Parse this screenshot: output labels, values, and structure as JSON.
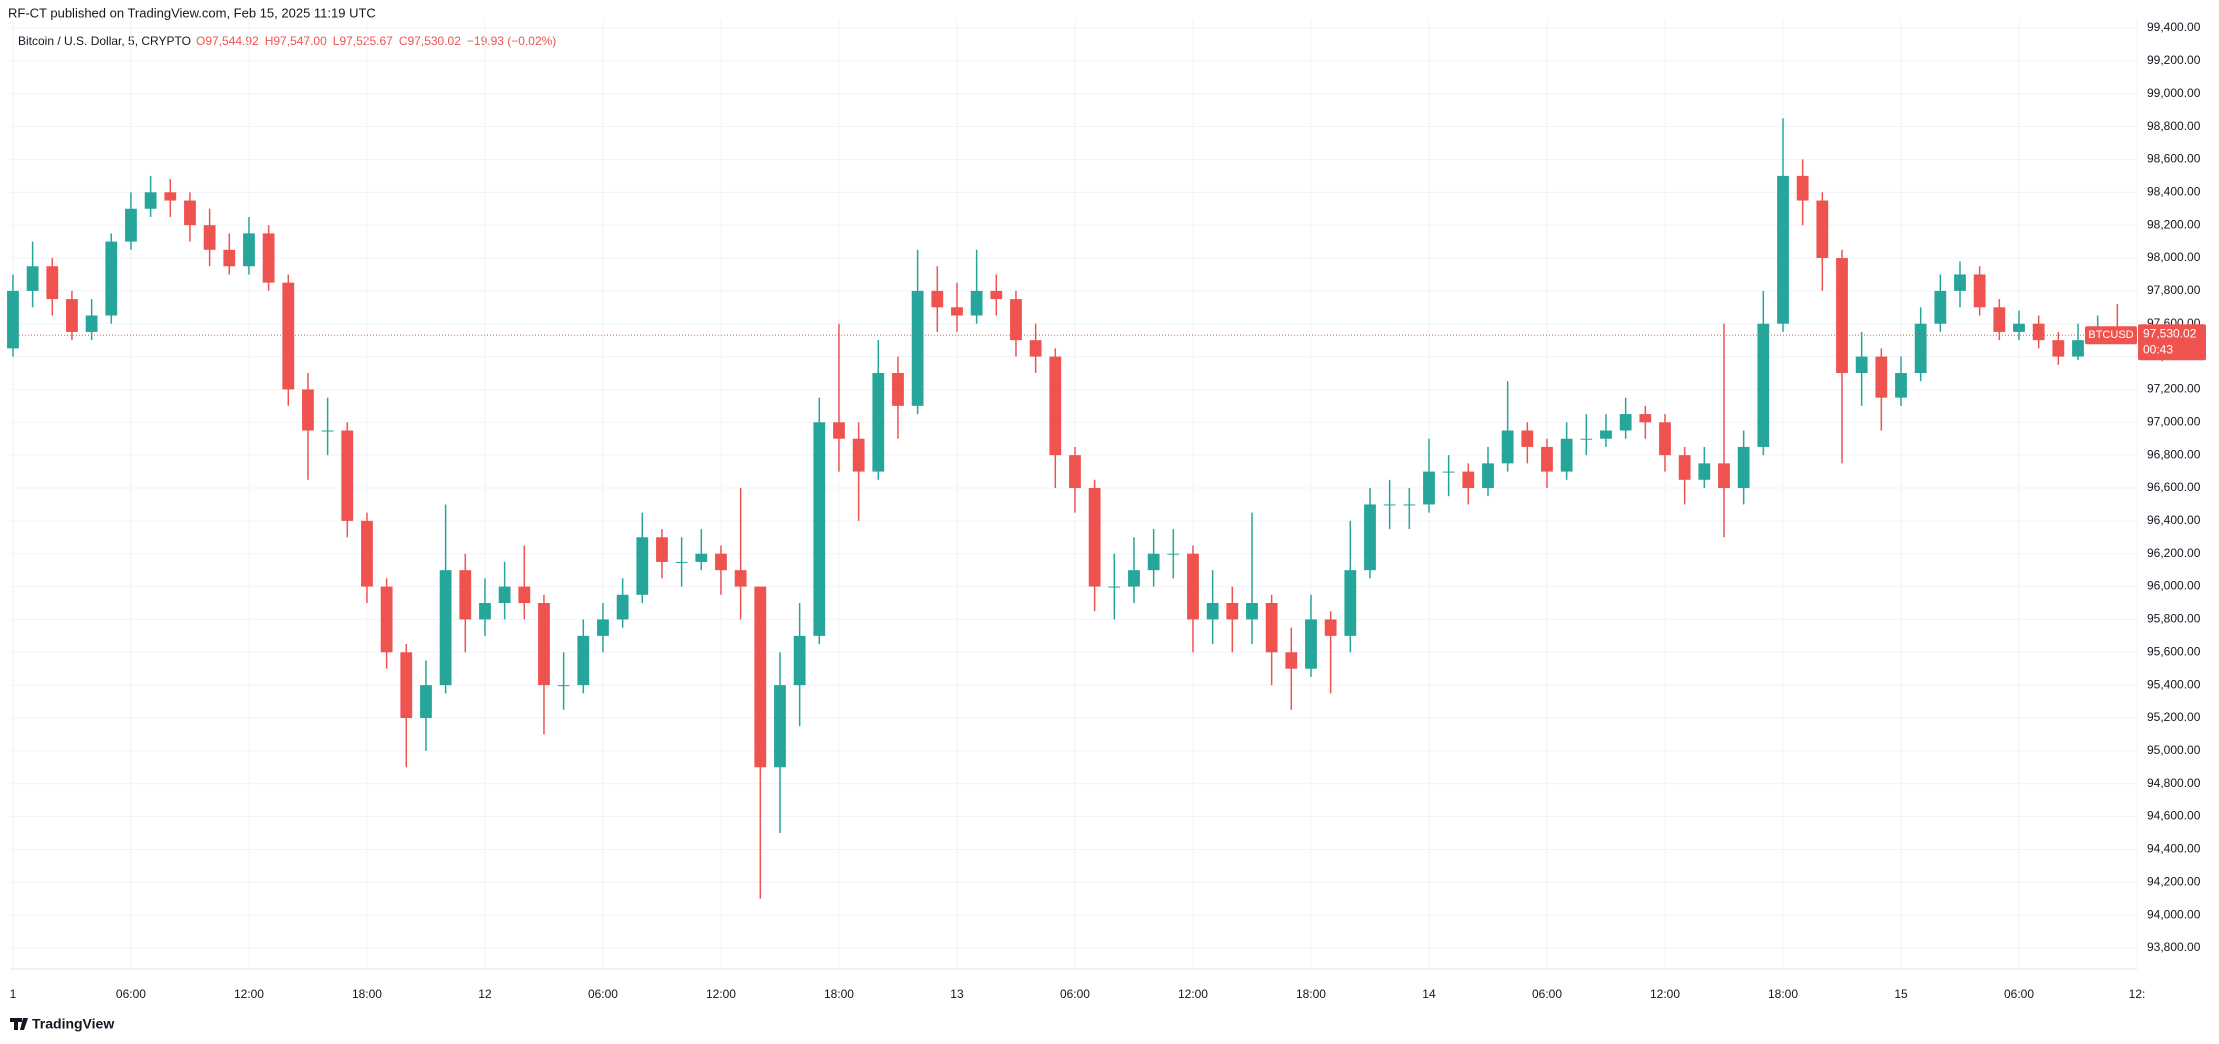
{
  "chart_data": {
    "type": "candlestick",
    "publisher": "RF-CT published on TradingView.com, Feb 15, 2025 11:19 UTC",
    "symbol": "Bitcoin / U.S. Dollar, 5, CRYPTO",
    "ohlc_text": {
      "open": "O97,544.92",
      "high": "H97,547.00",
      "low": "L97,525.67",
      "close": "C97,530.02",
      "change": "−19.93 (−0.02%)"
    },
    "footer": "TradingView",
    "series": [
      {
        "name": "BTCUSD",
        "up_color": "#26a69a",
        "down_color": "#ef5350",
        "open": [
          97450,
          97800,
          97950,
          97750,
          97550,
          97650,
          98100,
          98300,
          98400,
          98350,
          98200,
          98050,
          97950,
          98150,
          97850,
          97200,
          96950,
          96950,
          96400,
          96000,
          95600,
          95200,
          95400,
          96100,
          95800,
          95900,
          96000,
          95900,
          95400,
          95400,
          95700,
          95800,
          95950,
          96300,
          96150,
          96150,
          96200,
          96100,
          96000,
          94900,
          95400,
          95700,
          97000,
          96900,
          96700,
          97300,
          97100,
          97800,
          97700,
          97650,
          97800,
          97750,
          97500,
          97400,
          96800,
          96600,
          96000,
          96000,
          96100,
          96200,
          96200,
          95800,
          95900,
          95800,
          95900,
          95600,
          95500,
          95800,
          95700,
          96100,
          96500,
          96500,
          96500,
          96700,
          96700,
          96600,
          96750,
          96950,
          96850,
          96700,
          96900,
          96900,
          96950,
          97050,
          97000,
          96800,
          96650,
          96750,
          96600,
          96850,
          97600,
          98500,
          98350,
          98000,
          97300,
          97400,
          97150,
          97300,
          97600,
          97800,
          97900,
          97700,
          97550,
          97600,
          97500,
          97400,
          97500,
          97550
        ],
        "high": [
          97900,
          98100,
          98000,
          97800,
          97750,
          98150,
          98400,
          98500,
          98480,
          98400,
          98300,
          98150,
          98250,
          98200,
          97900,
          97300,
          97150,
          97000,
          96450,
          96050,
          95650,
          95550,
          96500,
          96200,
          96050,
          96150,
          96250,
          95950,
          95600,
          95800,
          95900,
          96050,
          96450,
          96350,
          96300,
          96350,
          96250,
          96600,
          96000,
          95600,
          95900,
          97150,
          97600,
          97000,
          97500,
          97400,
          98050,
          97950,
          97850,
          98050,
          97900,
          97800,
          97600,
          97450,
          96850,
          96650,
          96200,
          96300,
          96350,
          96350,
          96250,
          96100,
          96000,
          96450,
          95950,
          95750,
          95950,
          95850,
          96400,
          96600,
          96650,
          96600,
          96900,
          96800,
          96750,
          96850,
          97250,
          97000,
          96900,
          97000,
          97050,
          97050,
          97150,
          97100,
          97050,
          96850,
          96850,
          97600,
          96950,
          97800,
          98850,
          98600,
          98400,
          98050,
          97550,
          97450,
          97400,
          97700,
          97900,
          97980,
          97950,
          97750,
          97680,
          97650,
          97550,
          97600,
          97650,
          97720
        ],
        "low": [
          97400,
          97700,
          97650,
          97500,
          97500,
          97600,
          98050,
          98250,
          98250,
          98100,
          97950,
          97900,
          97900,
          97800,
          97100,
          96650,
          96800,
          96300,
          95900,
          95500,
          94900,
          95000,
          95350,
          95600,
          95700,
          95800,
          95800,
          95100,
          95250,
          95350,
          95600,
          95750,
          95900,
          96050,
          96000,
          96100,
          95950,
          95800,
          94100,
          94500,
          95150,
          95650,
          96700,
          96400,
          96650,
          96900,
          97050,
          97550,
          97550,
          97600,
          97650,
          97400,
          97300,
          96600,
          96450,
          95850,
          95800,
          95900,
          96000,
          96050,
          95600,
          95650,
          95600,
          95650,
          95400,
          95250,
          95450,
          95350,
          95600,
          96050,
          96350,
          96350,
          96450,
          96550,
          96500,
          96550,
          96700,
          96750,
          96600,
          96650,
          96800,
          96850,
          96900,
          96900,
          96700,
          96500,
          96600,
          96300,
          96500,
          96800,
          97550,
          98200,
          97800,
          96750,
          97100,
          96950,
          97100,
          97250,
          97550,
          97700,
          97650,
          97500,
          97500,
          97450,
          97350,
          97380,
          97480,
          97500
        ],
        "close": [
          97800,
          97950,
          97750,
          97550,
          97650,
          98100,
          98300,
          98400,
          98350,
          98200,
          98050,
          97950,
          98150,
          97850,
          97200,
          96950,
          96950,
          96400,
          96000,
          95600,
          95200,
          95400,
          96100,
          95800,
          95900,
          96000,
          95900,
          95400,
          95400,
          95700,
          95800,
          95950,
          96300,
          96150,
          96150,
          96200,
          96100,
          96000,
          94900,
          95400,
          95700,
          97000,
          96900,
          96700,
          97300,
          97100,
          97800,
          97700,
          97650,
          97800,
          97750,
          97500,
          97400,
          96800,
          96600,
          96000,
          96000,
          96100,
          96200,
          96200,
          95800,
          95900,
          95800,
          95900,
          95600,
          95500,
          95800,
          95700,
          96100,
          96500,
          96500,
          96500,
          96700,
          96700,
          96600,
          96750,
          96950,
          96850,
          96700,
          96900,
          96900,
          96950,
          97050,
          97000,
          96800,
          96650,
          96750,
          96600,
          96850,
          97600,
          98500,
          98350,
          98000,
          97300,
          97400,
          97150,
          97300,
          97600,
          97800,
          97900,
          97700,
          97550,
          97600,
          97500,
          97400,
          97500,
          97550,
          97530.02
        ]
      }
    ],
    "last_price": {
      "value": 97530.02,
      "label": "97,530.02"
    },
    "countdown": "00:43",
    "xlim": [
      -0.15,
      108
    ],
    "xticks": [
      {
        "value": 0,
        "label": "1"
      },
      {
        "value": 6,
        "label": "06:00"
      },
      {
        "value": 12,
        "label": "12:00"
      },
      {
        "value": 18,
        "label": "18:00"
      },
      {
        "value": 24,
        "label": "12"
      },
      {
        "value": 30,
        "label": "06:00"
      },
      {
        "value": 36,
        "label": "12:00"
      },
      {
        "value": 42,
        "label": "18:00"
      },
      {
        "value": 48,
        "label": "13"
      },
      {
        "value": 54,
        "label": "06:00"
      },
      {
        "value": 60,
        "label": "12:00"
      },
      {
        "value": 66,
        "label": "18:00"
      },
      {
        "value": 72,
        "label": "14"
      },
      {
        "value": 78,
        "label": "06:00"
      },
      {
        "value": 84,
        "label": "12:00"
      },
      {
        "value": 90,
        "label": "18:00"
      },
      {
        "value": 96,
        "label": "15"
      },
      {
        "value": 102,
        "label": "06:00"
      },
      {
        "value": 108,
        "label": "12:"
      }
    ],
    "ylim": [
      93672,
      99449
    ],
    "yticks": [
      {
        "value": 93800,
        "label": "93,800.00"
      },
      {
        "value": 94000,
        "label": "94,000.00"
      },
      {
        "value": 94200,
        "label": "94,200.00"
      },
      {
        "value": 94400,
        "label": "94,400.00"
      },
      {
        "value": 94600,
        "label": "94,600.00"
      },
      {
        "value": 94800,
        "label": "94,800.00"
      },
      {
        "value": 95000,
        "label": "95,000.00"
      },
      {
        "value": 95200,
        "label": "95,200.00"
      },
      {
        "value": 95400,
        "label": "95,400.00"
      },
      {
        "value": 95600,
        "label": "95,600.00"
      },
      {
        "value": 95800,
        "label": "95,800.00"
      },
      {
        "value": 96000,
        "label": "96,000.00"
      },
      {
        "value": 96200,
        "label": "96,200.00"
      },
      {
        "value": 96400,
        "label": "96,400.00"
      },
      {
        "value": 96600,
        "label": "96,600.00"
      },
      {
        "value": 96800,
        "label": "96,800.00"
      },
      {
        "value": 97000,
        "label": "97,000.00"
      },
      {
        "value": 97200,
        "label": "97,200.00"
      },
      {
        "value": 97400,
        "label": "97,400.00"
      },
      {
        "value": 97600,
        "label": "97,600.00"
      },
      {
        "value": 97800,
        "label": "97,800.00"
      },
      {
        "value": 98000,
        "label": "98,000.00"
      },
      {
        "value": 98200,
        "label": "98,200.00"
      },
      {
        "value": 98400,
        "label": "98,400.00"
      },
      {
        "value": 98600,
        "label": "98,600.00"
      },
      {
        "value": 98800,
        "label": "98,800.00"
      },
      {
        "value": 99000,
        "label": "99,000.00"
      },
      {
        "value": 99200,
        "label": "99,200.00"
      },
      {
        "value": 99400,
        "label": "99,400.00"
      }
    ],
    "grid": true
  }
}
